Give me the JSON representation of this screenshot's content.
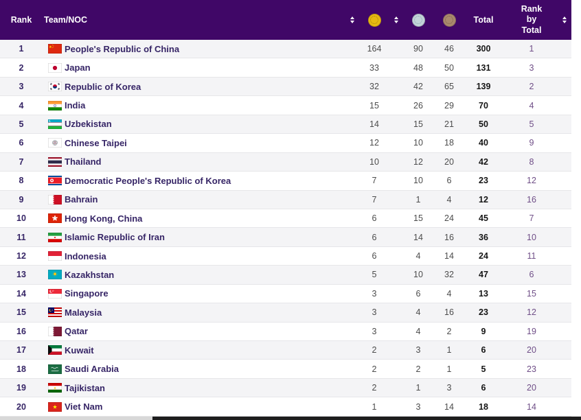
{
  "header": {
    "rank": "Rank",
    "team": "Team/NOC",
    "total": "Total",
    "rank_by_total": "Rank by Total"
  },
  "icons": {
    "gold": "gold-medal-icon",
    "silver": "silver-medal-icon",
    "bronze": "bronze-medal-icon",
    "sort": "sort-updown-icon"
  },
  "colors": {
    "header_bg": "#400767",
    "header_text": "#ffffff",
    "stripe_row": "#f4f4f6",
    "row_border": "#e6e6e9",
    "team_text": "#362566",
    "count_text": "#4c4c4c",
    "total_text": "#151515",
    "rank_by_total_text": "#6f4e87",
    "gold": "#e6ba12",
    "silver": "#c3d4d9",
    "bronze": "#aa8a6e",
    "scrollbar_track": "#d8d8d8",
    "scrollbar_thumb": "#1d1d1d"
  },
  "table": {
    "rows": [
      {
        "rank": 1,
        "country": "People's Republic of China",
        "flag": "cn",
        "gold": 164,
        "silver": 90,
        "bronze": 46,
        "total": 300,
        "rank_by_total": 1
      },
      {
        "rank": 2,
        "country": "Japan",
        "flag": "jp",
        "gold": 33,
        "silver": 48,
        "bronze": 50,
        "total": 131,
        "rank_by_total": 3
      },
      {
        "rank": 3,
        "country": "Republic of Korea",
        "flag": "kr",
        "gold": 32,
        "silver": 42,
        "bronze": 65,
        "total": 139,
        "rank_by_total": 2
      },
      {
        "rank": 4,
        "country": "India",
        "flag": "in",
        "gold": 15,
        "silver": 26,
        "bronze": 29,
        "total": 70,
        "rank_by_total": 4
      },
      {
        "rank": 5,
        "country": "Uzbekistan",
        "flag": "uz",
        "gold": 14,
        "silver": 15,
        "bronze": 21,
        "total": 50,
        "rank_by_total": 5
      },
      {
        "rank": 6,
        "country": "Chinese Taipei",
        "flag": "tpe",
        "gold": 12,
        "silver": 10,
        "bronze": 18,
        "total": 40,
        "rank_by_total": 9
      },
      {
        "rank": 7,
        "country": "Thailand",
        "flag": "th",
        "gold": 10,
        "silver": 12,
        "bronze": 20,
        "total": 42,
        "rank_by_total": 8
      },
      {
        "rank": 8,
        "country": "Democratic People's Republic of Korea",
        "flag": "prk",
        "gold": 7,
        "silver": 10,
        "bronze": 6,
        "total": 23,
        "rank_by_total": 12
      },
      {
        "rank": 9,
        "country": "Bahrain",
        "flag": "bh",
        "gold": 7,
        "silver": 1,
        "bronze": 4,
        "total": 12,
        "rank_by_total": 16
      },
      {
        "rank": 10,
        "country": "Hong Kong, China",
        "flag": "hk",
        "gold": 6,
        "silver": 15,
        "bronze": 24,
        "total": 45,
        "rank_by_total": 7
      },
      {
        "rank": 11,
        "country": "Islamic Republic of Iran",
        "flag": "ir",
        "gold": 6,
        "silver": 14,
        "bronze": 16,
        "total": 36,
        "rank_by_total": 10
      },
      {
        "rank": 12,
        "country": "Indonesia",
        "flag": "id",
        "gold": 6,
        "silver": 4,
        "bronze": 14,
        "total": 24,
        "rank_by_total": 11
      },
      {
        "rank": 13,
        "country": "Kazakhstan",
        "flag": "kz",
        "gold": 5,
        "silver": 10,
        "bronze": 32,
        "total": 47,
        "rank_by_total": 6
      },
      {
        "rank": 14,
        "country": "Singapore",
        "flag": "sg",
        "gold": 3,
        "silver": 6,
        "bronze": 4,
        "total": 13,
        "rank_by_total": 15
      },
      {
        "rank": 15,
        "country": "Malaysia",
        "flag": "my",
        "gold": 3,
        "silver": 4,
        "bronze": 16,
        "total": 23,
        "rank_by_total": 12
      },
      {
        "rank": 16,
        "country": "Qatar",
        "flag": "qa",
        "gold": 3,
        "silver": 4,
        "bronze": 2,
        "total": 9,
        "rank_by_total": 19
      },
      {
        "rank": 17,
        "country": "Kuwait",
        "flag": "kw",
        "gold": 2,
        "silver": 3,
        "bronze": 1,
        "total": 6,
        "rank_by_total": 20
      },
      {
        "rank": 18,
        "country": "Saudi Arabia",
        "flag": "sa",
        "gold": 2,
        "silver": 2,
        "bronze": 1,
        "total": 5,
        "rank_by_total": 23
      },
      {
        "rank": 19,
        "country": "Tajikistan",
        "flag": "tj",
        "gold": 2,
        "silver": 1,
        "bronze": 3,
        "total": 6,
        "rank_by_total": 20
      },
      {
        "rank": 20,
        "country": "Viet Nam",
        "flag": "vn",
        "gold": 1,
        "silver": 3,
        "bronze": 14,
        "total": 18,
        "rank_by_total": 14
      }
    ]
  }
}
